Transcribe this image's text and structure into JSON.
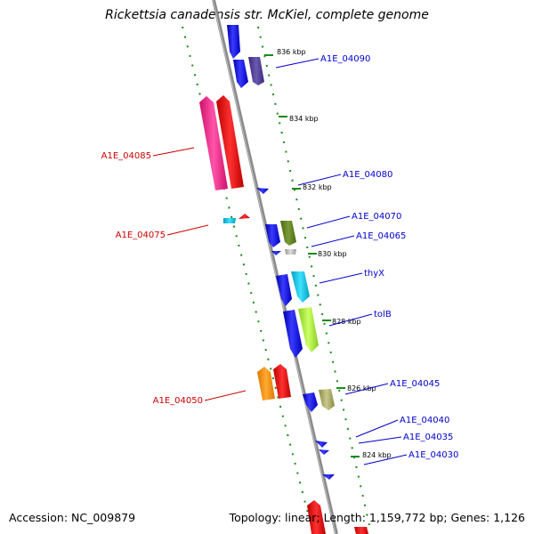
{
  "title": "Rickettsia canadensis str. McKiel, complete genome",
  "footer": {
    "accession": "Accession: NC_009879",
    "stats": "Topology: linear; Length: 1,159,772 bp; Genes: 1,126"
  },
  "colors": {
    "backbone": "#8a8a8a",
    "ticks": "#1a8a1a",
    "forward_label": "#0000cc",
    "reverse_label": "#cc0000"
  },
  "scale_markers": [
    "836 kbp",
    "834 kbp",
    "832 kbp",
    "830 kbp",
    "828 kbp",
    "826 kbp",
    "824 kbp"
  ],
  "gene_labels": {
    "forward": [
      "A1E_04090",
      "A1E_04080",
      "A1E_04070",
      "A1E_04065",
      "thyX",
      "tolB",
      "A1E_04045",
      "A1E_04040",
      "A1E_04035",
      "A1E_04030"
    ],
    "reverse": [
      "A1E_04085",
      "A1E_04075",
      "A1E_04050"
    ]
  }
}
